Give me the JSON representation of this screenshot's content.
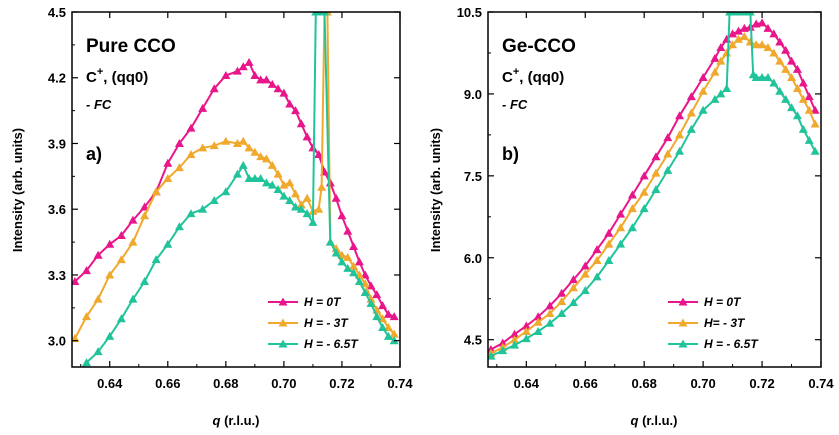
{
  "chart_data": [
    {
      "type": "line",
      "title": "Pure CCO",
      "subtitle_base": "C",
      "subtitle_sup": "+",
      "subtitle_rest": ", (qq0)",
      "condition": "- FC",
      "panel_label": "a)",
      "xlabel_var": "q",
      "xlabel_unit": "(r.l.u.)",
      "ylabel": "Intensity (arb. units)",
      "xlim": [
        0.627,
        0.74
      ],
      "ylim": [
        2.88,
        4.5
      ],
      "xticks": [
        0.64,
        0.66,
        0.68,
        0.7,
        0.72,
        0.74
      ],
      "xtick_labels": [
        "0.64",
        "0.66",
        "0.68",
        "0.70",
        "0.72",
        "0.74"
      ],
      "yticks": [
        3.0,
        3.3,
        3.6,
        3.9,
        4.2,
        4.5
      ],
      "ytick_labels": [
        "3.0",
        "3.3",
        "3.6",
        "3.9",
        "4.2",
        "4.5"
      ],
      "legend_position": "bottom-right",
      "series": [
        {
          "name": "H = 0T",
          "color": "#e8168a",
          "x": [
            0.628,
            0.632,
            0.636,
            0.64,
            0.644,
            0.648,
            0.652,
            0.656,
            0.66,
            0.664,
            0.668,
            0.672,
            0.676,
            0.68,
            0.684,
            0.686,
            0.688,
            0.69,
            0.692,
            0.694,
            0.696,
            0.698,
            0.7,
            0.702,
            0.704,
            0.706,
            0.708,
            0.71,
            0.712,
            0.714,
            0.716,
            0.718,
            0.72,
            0.722,
            0.724,
            0.726,
            0.728,
            0.73,
            0.732,
            0.734,
            0.736,
            0.738
          ],
          "y": [
            3.27,
            3.32,
            3.39,
            3.44,
            3.48,
            3.55,
            3.61,
            3.68,
            3.81,
            3.9,
            3.97,
            4.06,
            4.15,
            4.21,
            4.23,
            4.25,
            4.27,
            4.21,
            4.19,
            4.19,
            4.17,
            4.15,
            4.13,
            4.08,
            4.05,
            3.99,
            3.93,
            3.88,
            3.85,
            3.77,
            3.72,
            3.65,
            3.57,
            3.5,
            3.43,
            3.36,
            3.3,
            3.25,
            3.21,
            3.16,
            3.12,
            3.11
          ]
        },
        {
          "name": "H = - 3T",
          "color": "#f0a92c",
          "x": [
            0.628,
            0.632,
            0.636,
            0.64,
            0.644,
            0.648,
            0.652,
            0.656,
            0.66,
            0.664,
            0.668,
            0.672,
            0.676,
            0.68,
            0.684,
            0.686,
            0.688,
            0.69,
            0.692,
            0.694,
            0.696,
            0.698,
            0.7,
            0.702,
            0.704,
            0.706,
            0.708,
            0.71,
            0.712,
            0.713,
            0.714,
            0.715,
            0.716,
            0.718,
            0.72,
            0.722,
            0.724,
            0.726,
            0.728,
            0.73,
            0.732,
            0.734,
            0.736,
            0.738
          ],
          "y": [
            3.01,
            3.11,
            3.19,
            3.3,
            3.37,
            3.45,
            3.57,
            3.68,
            3.74,
            3.79,
            3.85,
            3.88,
            3.89,
            3.91,
            3.9,
            3.91,
            3.88,
            3.86,
            3.84,
            3.83,
            3.8,
            3.76,
            3.71,
            3.72,
            3.67,
            3.62,
            3.65,
            3.59,
            3.6,
            3.7,
            4.5,
            4.5,
            3.45,
            3.42,
            3.39,
            3.38,
            3.34,
            3.3,
            3.26,
            3.19,
            3.14,
            3.1,
            3.06,
            3.03
          ]
        },
        {
          "name": "H = - 6.5T",
          "color": "#21c49a",
          "x": [
            0.628,
            0.632,
            0.636,
            0.64,
            0.644,
            0.648,
            0.652,
            0.656,
            0.66,
            0.664,
            0.668,
            0.672,
            0.676,
            0.68,
            0.684,
            0.686,
            0.688,
            0.69,
            0.692,
            0.694,
            0.696,
            0.698,
            0.7,
            0.702,
            0.704,
            0.706,
            0.708,
            0.71,
            0.711,
            0.712,
            0.713,
            0.714,
            0.716,
            0.718,
            0.72,
            0.722,
            0.724,
            0.726,
            0.728,
            0.73,
            0.732,
            0.734,
            0.736,
            0.738
          ],
          "y": [
            2.8,
            2.9,
            2.95,
            3.02,
            3.1,
            3.19,
            3.27,
            3.37,
            3.44,
            3.52,
            3.58,
            3.6,
            3.64,
            3.68,
            3.76,
            3.8,
            3.74,
            3.74,
            3.74,
            3.72,
            3.71,
            3.69,
            3.66,
            3.64,
            3.61,
            3.6,
            3.58,
            3.54,
            4.5,
            4.5,
            4.5,
            4.5,
            3.45,
            3.4,
            3.36,
            3.33,
            3.31,
            3.27,
            3.22,
            3.17,
            3.11,
            3.06,
            3.02,
            3.0
          ]
        }
      ]
    },
    {
      "type": "line",
      "title": "Ge-CCO",
      "subtitle_base": "C",
      "subtitle_sup": "+",
      "subtitle_rest": ", (qq0)",
      "condition": "- FC",
      "panel_label": "b)",
      "xlabel_var": "q",
      "xlabel_unit": "(r.l.u.)",
      "ylabel": "Intensity (arb. units)",
      "xlim": [
        0.627,
        0.74
      ],
      "ylim": [
        4.0,
        10.5
      ],
      "xticks": [
        0.64,
        0.66,
        0.68,
        0.7,
        0.72,
        0.74
      ],
      "xtick_labels": [
        "0.64",
        "0.66",
        "0.68",
        "0.70",
        "0.72",
        "0.74"
      ],
      "yticks": [
        4.5,
        6.0,
        7.5,
        9.0,
        10.5
      ],
      "ytick_labels": [
        "4.5",
        "6.0",
        "7.5",
        "9.0",
        "10.5"
      ],
      "legend_position": "bottom-right",
      "series": [
        {
          "name": "H = 0T",
          "color": "#e8168a",
          "x": [
            0.628,
            0.632,
            0.636,
            0.64,
            0.644,
            0.648,
            0.652,
            0.656,
            0.66,
            0.664,
            0.668,
            0.672,
            0.676,
            0.68,
            0.684,
            0.688,
            0.692,
            0.696,
            0.7,
            0.704,
            0.706,
            0.708,
            0.71,
            0.712,
            0.714,
            0.716,
            0.718,
            0.72,
            0.722,
            0.724,
            0.726,
            0.728,
            0.73,
            0.732,
            0.734,
            0.736,
            0.738
          ],
          "y": [
            4.32,
            4.44,
            4.6,
            4.75,
            4.92,
            5.12,
            5.35,
            5.6,
            5.85,
            6.15,
            6.45,
            6.8,
            7.15,
            7.5,
            7.85,
            8.2,
            8.6,
            8.95,
            9.3,
            9.65,
            9.85,
            10.0,
            10.1,
            10.15,
            10.2,
            10.22,
            10.28,
            10.3,
            10.2,
            10.1,
            9.95,
            9.8,
            9.6,
            9.45,
            9.2,
            8.95,
            8.7
          ]
        },
        {
          "name": "H= - 3T",
          "color": "#f0a92c",
          "x": [
            0.628,
            0.632,
            0.636,
            0.64,
            0.644,
            0.648,
            0.652,
            0.656,
            0.66,
            0.664,
            0.668,
            0.672,
            0.676,
            0.68,
            0.684,
            0.688,
            0.692,
            0.696,
            0.7,
            0.704,
            0.706,
            0.708,
            0.71,
            0.712,
            0.714,
            0.716,
            0.718,
            0.72,
            0.722,
            0.724,
            0.726,
            0.728,
            0.73,
            0.732,
            0.734,
            0.736,
            0.738
          ],
          "y": [
            4.25,
            4.36,
            4.5,
            4.65,
            4.82,
            4.98,
            5.2,
            5.45,
            5.7,
            5.95,
            6.25,
            6.55,
            6.9,
            7.2,
            7.55,
            7.9,
            8.25,
            8.65,
            9.05,
            9.4,
            9.6,
            9.75,
            9.9,
            10.0,
            10.05,
            9.95,
            9.9,
            9.9,
            9.85,
            9.75,
            9.6,
            9.45,
            9.3,
            9.1,
            8.9,
            8.7,
            8.45
          ]
        },
        {
          "name": "H = - 6.5T",
          "color": "#21c49a",
          "x": [
            0.628,
            0.632,
            0.636,
            0.64,
            0.644,
            0.648,
            0.652,
            0.656,
            0.66,
            0.664,
            0.668,
            0.672,
            0.676,
            0.68,
            0.684,
            0.688,
            0.692,
            0.696,
            0.7,
            0.704,
            0.706,
            0.708,
            0.709,
            0.71,
            0.712,
            0.714,
            0.716,
            0.717,
            0.718,
            0.72,
            0.722,
            0.724,
            0.726,
            0.728,
            0.73,
            0.732,
            0.734,
            0.736,
            0.738
          ],
          "y": [
            4.2,
            4.3,
            4.4,
            4.52,
            4.65,
            4.8,
            4.98,
            5.18,
            5.4,
            5.65,
            5.95,
            6.25,
            6.55,
            6.9,
            7.25,
            7.6,
            7.95,
            8.35,
            8.7,
            8.9,
            9.0,
            9.1,
            10.5,
            10.5,
            10.5,
            10.5,
            10.5,
            9.35,
            9.3,
            9.3,
            9.3,
            9.2,
            9.05,
            8.9,
            8.75,
            8.6,
            8.35,
            8.15,
            7.95
          ]
        }
      ]
    }
  ]
}
